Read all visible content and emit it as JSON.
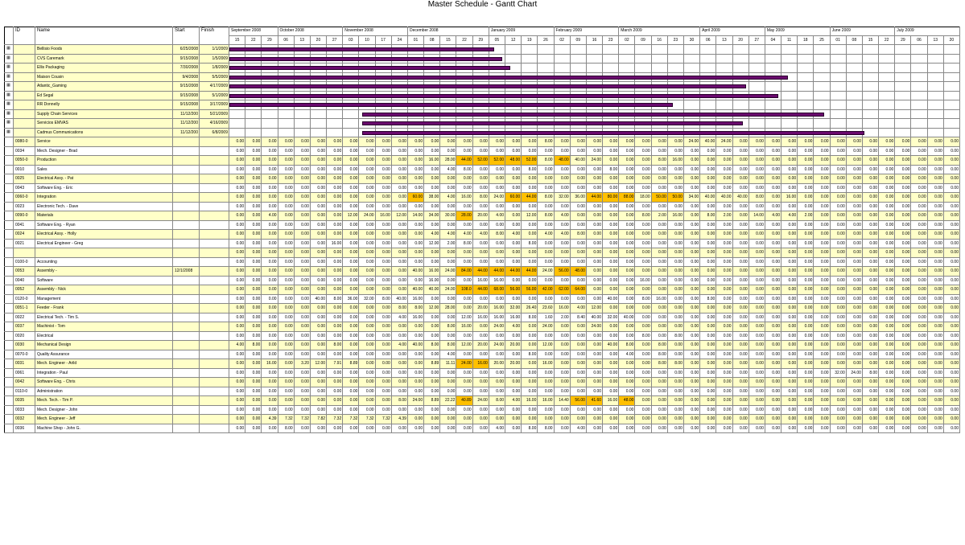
{
  "title": "Master Schedule - Gantt Chart",
  "colors": {
    "yellow": "#ffffc8",
    "orange": "#ffc000",
    "bar": "#6a0a6e",
    "grid": "#888888"
  },
  "header": {
    "id": "ID",
    "name": "Name",
    "start": "Start",
    "finish": "Finish"
  },
  "months": [
    "September 2008",
    "October 2008",
    "November 2008",
    "December 2008",
    "January 2009",
    "February 2009",
    "March 2009",
    "April 2009",
    "May 2009",
    "June 2009",
    "July 2009"
  ],
  "weeks": [
    "15",
    "22",
    "29",
    "06",
    "13",
    "20",
    "27",
    "03",
    "10",
    "17",
    "24",
    "01",
    "08",
    "15",
    "22",
    "29",
    "05",
    "12",
    "19",
    "26",
    "02",
    "09",
    "16",
    "23",
    "02",
    "09",
    "16",
    "23",
    "30",
    "06",
    "13",
    "20",
    "27",
    "04",
    "11",
    "18",
    "25",
    "01",
    "08",
    "15",
    "22",
    "29",
    "06",
    "13",
    "20"
  ],
  "tasks": [
    {
      "name": "Bellisio Foods",
      "start": "6/25/2008",
      "finish": "1/1/2009",
      "bar": [
        0,
        16.3
      ]
    },
    {
      "name": "CVS Caremark",
      "start": "9/15/2008",
      "finish": "1/5/2009",
      "bar": [
        0,
        16.8
      ]
    },
    {
      "name": "Ellis Packaging",
      "start": "7/30/2008",
      "finish": "1/8/2009",
      "bar": [
        0,
        17.3
      ]
    },
    {
      "name": "Maison Cousin",
      "start": "9/4/2008",
      "finish": "5/5/2009",
      "bar": [
        0,
        34.4
      ]
    },
    {
      "name": "Atlantic_Gaming",
      "start": "9/15/2008",
      "finish": "4/17/2009",
      "bar": [
        0,
        31.8
      ]
    },
    {
      "name": "Ed Segal",
      "start": "9/15/2008",
      "finish": "5/1/2009",
      "bar": [
        0,
        33.8
      ]
    },
    {
      "name": "RR Donnelly",
      "start": "9/15/2008",
      "finish": "3/17/2009",
      "bar": [
        0,
        27.3
      ]
    },
    {
      "name": "Supply Chain Services",
      "start": "11/12/200",
      "finish": "5/21/2009",
      "bar": [
        8.2,
        36.6
      ]
    },
    {
      "name": "Servicios EMVAS",
      "start": "11/12/200",
      "finish": "4/16/2009",
      "bar": [
        8.2,
        31.6
      ]
    },
    {
      "name": "Cadmus Communications",
      "start": "11/12/200",
      "finish": "6/8/2009",
      "bar": [
        8.2,
        39.1
      ]
    }
  ],
  "resources": [
    {
      "id": "0080-0",
      "name": "Service",
      "start": "",
      "hl": 1,
      "vals": "0.00|0.00|0.00|0.00|0.00|0.00|0.00|0.00|0.00|0.00|0.00|0.00|0.00|0.00|0.00|0.00|0.00|0.00|0.00|8.00|0.00|0.00|0.00|0.00|0.00|0.00|0.00|0.00|24.00|40.00|24.00|0.00|0.00|0.00|0.00|0.00|0.00|0.00|0.00|0.00|0.00|0.00|0.00|0.00|0.00",
      "o": []
    },
    {
      "id": "0034",
      "name": "Mech. Designer - Brad",
      "start": "",
      "hl": 0,
      "vals": "0.00|0.00|0.00|0.00|0.00|0.00|0.00|0.00|0.00|0.00|0.00|0.00|0.00|0.00|0.00|0.00|0.00|0.00|0.00|0.00|0.00|0.00|0.00|0.00|0.00|0.00|0.00|0.00|0.00|0.00|0.00|0.00|0.00|0.00|0.00|0.00|0.00|0.00|0.00|0.00|0.00|0.00|0.00|0.00|0.00",
      "o": []
    },
    {
      "id": "0050-0",
      "name": "Production",
      "start": "",
      "hl": 1,
      "vals": "0.00|0.00|0.00|0.00|0.00|0.00|0.00|0.00|0.00|0.00|0.00|0.00|16.00|28.00|44.00|52.00|52.00|48.00|52.00|8.00|48.00|40.00|24.00|0.00|0.00|0.00|8.00|16.00|0.00|0.00|0.00|0.00|0.00|0.00|0.00|0.00|0.00|0.00|0.00|0.00|0.00|0.00|0.00|0.00|0.00",
      "o": [
        14,
        15,
        16,
        17,
        18,
        20
      ]
    },
    {
      "id": "0010",
      "name": "Sales",
      "start": "",
      "hl": 0,
      "vals": "0.00|0.00|0.00|0.00|0.00|0.00|0.00|0.00|0.00|0.00|0.00|0.00|0.00|4.00|8.00|0.00|0.00|0.00|8.00|0.00|0.00|0.00|0.00|8.00|0.00|0.00|0.00|0.00|0.00|0.00|0.00|0.00|0.00|0.00|0.00|0.00|0.00|0.00|0.00|0.00|0.00|0.00|0.00|0.00|0.00",
      "o": []
    },
    {
      "id": "0025",
      "name": "Electrical Assy. - Pat",
      "start": "",
      "hl": 1,
      "vals": "0.00|0.00|0.00|0.00|0.00|0.00|0.00|0.00|0.00|0.00|0.00|0.00|0.00|0.00|0.00|0.00|0.00|0.00|0.00|0.00|0.00|0.00|0.00|0.00|0.00|0.00|0.00|0.00|0.00|0.00|0.00|0.00|0.00|0.00|0.00|0.00|0.00|0.00|0.00|0.00|0.00|0.00|0.00|0.00|0.00",
      "o": []
    },
    {
      "id": "0043",
      "name": "Software Eng. - Eric",
      "start": "",
      "hl": 0,
      "vals": "0.00|0.00|0.00|0.00|0.00|0.00|0.00|0.00|0.00|0.00|0.00|0.00|0.00|0.00|0.00|0.00|0.00|0.00|0.00|0.00|0.00|0.00|0.00|0.00|0.00|0.00|0.00|0.00|0.00|0.00|0.00|0.00|0.00|0.00|0.00|0.00|0.00|0.00|0.00|0.00|0.00|0.00|0.00|0.00|0.00",
      "o": []
    },
    {
      "id": "0060-0",
      "name": "Integration",
      "start": "",
      "hl": 1,
      "vals": "0.00|0.00|0.00|0.00|0.00|0.00|0.00|0.00|0.00|0.00|0.00|60.00|38.00|4.00|16.00|8.00|24.00|60.00|44.00|8.00|32.00|36.00|44.00|80.00|88.00|18.00|50.00|50.00|34.00|40.00|40.00|40.00|8.00|0.00|16.00|0.00|0.00|0.00|0.00|0.00|0.00|0.00|0.00|0.00|0.00",
      "o": [
        11,
        17,
        18,
        22,
        23,
        24,
        26,
        27
      ]
    },
    {
      "id": "0023",
      "name": "Electronic Tech. - Dave",
      "start": "",
      "hl": 0,
      "vals": "0.00|0.00|0.00|0.00|0.00|0.00|0.00|0.00|0.00|0.00|0.00|0.00|0.00|0.00|0.00|0.00|0.00|0.00|0.00|0.00|0.00|0.00|0.00|0.00|0.00|0.00|0.00|0.00|0.00|0.00|0.00|0.00|0.00|0.00|0.00|0.00|0.00|0.00|0.00|0.00|0.00|0.00|0.00|0.00|0.00",
      "o": []
    },
    {
      "id": "0090-0",
      "name": "Materials",
      "start": "",
      "hl": 1,
      "vals": "0.00|0.00|4.00|0.00|0.00|0.00|0.00|12.00|24.00|16.00|12.00|14.00|34.00|30.00|28.00|20.00|4.00|0.00|12.00|8.00|4.00|0.00|0.00|0.00|0.00|8.00|2.00|16.00|0.00|8.00|2.00|0.00|14.00|4.00|4.00|2.00|0.00|0.00|0.00|0.00|0.00|0.00|0.00|0.00|0.00",
      "o": [
        14
      ]
    },
    {
      "id": "0041",
      "name": "Software Eng. - Ryan",
      "start": "",
      "hl": 0,
      "vals": "0.00|0.00|0.00|0.00|0.00|0.00|0.00|0.00|0.00|0.00|0.00|0.00|0.00|0.00|0.00|0.00|0.00|0.00|0.00|0.00|0.00|0.00|0.00|0.00|0.00|0.00|0.00|0.00|0.00|0.00|0.00|0.00|0.00|0.00|0.00|0.00|0.00|0.00|0.00|0.00|0.00|0.00|0.00|0.00|0.00",
      "o": []
    },
    {
      "id": "0024",
      "name": "Electrical Assy. - Holly",
      "start": "",
      "hl": 1,
      "vals": "0.00|0.00|0.00|0.00|0.00|0.00|0.00|0.00|0.00|0.00|0.00|0.00|4.00|4.00|4.00|4.00|8.00|4.00|0.00|4.00|4.00|8.00|0.00|0.00|0.00|0.00|0.00|0.00|0.00|0.00|0.00|0.00|0.00|0.00|0.00|0.00|0.00|0.00|0.00|0.00|0.00|0.00|0.00|0.00|0.00",
      "o": []
    },
    {
      "id": "0021",
      "name": "Electrical Engineer - Greg",
      "start": "",
      "hl": 0,
      "vals": "0.00|0.00|0.00|0.00|0.00|0.00|16.00|0.00|0.00|0.00|0.00|0.00|12.00|2.00|8.00|0.00|0.00|0.00|8.00|0.00|0.00|0.00|0.00|0.00|0.00|0.00|0.00|0.00|0.00|0.00|0.00|0.00|0.00|0.00|0.00|0.00|0.00|0.00|0.00|0.00|0.00|0.00|0.00|0.00|0.00",
      "o": []
    },
    {
      "id": "",
      "name": "",
      "start": "",
      "hl": 1,
      "vals": "0.00|0.00|0.00|0.00|0.00|0.00|0.00|0.00|0.00|0.00|0.00|0.00|0.00|0.00|0.00|0.00|0.00|0.00|0.00|0.00|0.00|0.00|0.00|0.00|0.00|0.00|0.00|0.00|0.00|0.00|0.00|0.00|0.00|0.00|0.00|0.00|0.00|0.00|0.00|0.00|0.00|0.00|0.00|0.00|0.00",
      "o": []
    },
    {
      "id": "0100-0",
      "name": "Accounting",
      "start": "",
      "hl": 0,
      "vals": "0.00|0.00|0.00|0.00|0.00|0.00|0.00|0.00|0.00|0.00|0.00|0.00|0.00|0.00|0.00|0.00|0.00|0.00|0.00|0.00|0.00|0.00|0.00|0.00|0.00|0.00|0.00|0.00|0.00|0.00|0.00|0.00|0.00|0.00|0.00|0.00|0.00|0.00|0.00|0.00|0.00|0.00|0.00|0.00|0.00",
      "o": []
    },
    {
      "id": "0053",
      "name": "Assembly -",
      "start": "12/1/2008",
      "hl": 1,
      "vals": "0.00|0.00|0.00|0.00|0.00|0.00|0.00|0.00|0.00|0.00|0.00|40.00|16.00|24.00|84.00|44.00|44.00|44.00|44.00|24.00|56.00|48.00|0.00|0.00|0.00|0.00|0.00|0.00|0.00|0.00|0.00|0.00|0.00|0.00|0.00|0.00|0.00|0.00|0.00|0.00|0.00|0.00|0.00|0.00|0.00",
      "o": [
        14,
        15,
        16,
        17,
        18,
        20,
        21
      ]
    },
    {
      "id": "0040",
      "name": "Software",
      "start": "",
      "hl": 0,
      "vals": "0.00|0.00|0.00|0.00|0.00|0.00|0.00|0.00|0.00|0.00|0.00|0.00|16.00|0.00|0.00|16.00|16.00|0.00|0.00|0.00|0.00|0.00|0.00|0.00|0.00|16.00|0.00|0.00|0.00|0.00|0.00|0.00|0.00|0.00|0.00|0.00|0.00|0.00|0.00|0.00|0.00|0.00|0.00|0.00|0.00",
      "o": []
    },
    {
      "id": "0052",
      "name": "Assembly - Nick",
      "start": "",
      "hl": 1,
      "vals": "0.00|0.00|0.00|0.00|0.00|0.00|0.00|0.00|0.00|0.00|0.00|40.00|40.00|24.00|108.0|44.00|68.00|56.00|56.00|42.00|62.00|64.00|0.00|0.00|0.00|0.00|0.00|0.00|0.00|0.00|0.00|0.00|0.00|0.00|0.00|0.00|0.00|0.00|0.00|0.00|0.00|0.00|0.00|0.00|0.00",
      "o": [
        14,
        15,
        16,
        17,
        18,
        19,
        20,
        21
      ]
    },
    {
      "id": "0120-0",
      "name": "Management",
      "start": "",
      "hl": 0,
      "vals": "0.00|0.00|0.00|0.00|0.00|40.00|8.00|36.00|32.00|8.00|40.00|16.00|0.00|0.00|0.00|0.00|0.00|0.00|0.00|0.00|0.00|0.00|0.00|40.00|0.00|8.00|16.00|0.00|0.00|8.00|0.00|0.00|0.00|0.00|0.00|0.00|0.00|0.00|0.00|0.00|0.00|0.00|0.00|0.00|0.00",
      "o": []
    },
    {
      "id": "0051-1",
      "name": "Feeder - Frank",
      "start": "",
      "hl": 1,
      "vals": "0.00|0.00|0.00|0.00|0.00|0.00|0.00|0.00|0.00|0.00|8.00|8.00|12.00|28.00|0.00|20.00|16.00|32.00|26.40|23.60|16.00|4.00|12.00|0.00|0.00|0.00|0.00|0.00|0.00|0.00|0.00|0.00|0.00|0.00|0.00|0.00|0.00|0.00|0.00|0.00|0.00|0.00|0.00|0.00|0.00",
      "o": []
    },
    {
      "id": "0022",
      "name": "Electrical Tech. - Tim S.",
      "start": "",
      "hl": 0,
      "vals": "0.00|0.00|0.00|0.00|0.00|0.00|0.00|0.00|0.00|0.00|4.00|16.00|0.00|0.00|12.00|16.00|16.00|16.00|8.00|1.60|2.00|8.40|40.00|32.00|40.00|0.00|0.00|0.00|0.00|0.00|0.00|0.00|0.00|0.00|0.00|0.00|0.00|0.00|0.00|0.00|0.00|0.00|0.00|0.00|0.00",
      "o": []
    },
    {
      "id": "0037",
      "name": "Machinist - Tom",
      "start": "",
      "hl": 1,
      "vals": "0.00|0.00|0.00|0.00|0.00|0.00|0.00|0.00|0.00|0.00|0.00|0.00|0.00|8.00|16.00|0.00|24.00|4.00|0.00|24.00|0.00|0.00|24.00|0.00|0.00|0.00|0.00|0.00|0.00|0.00|0.00|0.00|0.00|0.00|0.00|0.00|0.00|0.00|0.00|0.00|0.00|0.00|0.00|0.00|0.00",
      "o": []
    },
    {
      "id": "0020",
      "name": "Electrical",
      "start": "",
      "hl": 0,
      "vals": "0.00|0.00|0.00|0.00|0.00|0.00|0.00|0.00|0.00|0.00|0.00|0.00|0.00|0.00|0.00|0.00|0.00|0.00|0.00|0.00|0.00|0.00|0.00|0.00|0.00|8.00|0.00|8.00|0.00|0.00|0.00|0.00|0.00|0.00|0.00|0.00|0.00|0.00|0.00|0.00|0.00|0.00|0.00|0.00|0.00",
      "o": []
    },
    {
      "id": "0030",
      "name": "Mechanical Design",
      "start": "",
      "hl": 1,
      "vals": "4.00|8.00|0.00|0.00|0.00|0.00|8.00|0.00|0.00|0.00|4.00|40.00|8.00|8.00|12.00|20.00|24.00|20.00|0.00|12.00|0.00|0.00|0.00|40.00|8.00|0.00|8.00|0.00|0.00|0.00|0.00|0.00|0.00|0.00|0.00|0.00|0.00|0.00|0.00|0.00|0.00|0.00|0.00|0.00|0.00",
      "o": []
    },
    {
      "id": "0070-0",
      "name": "Quality Assurance",
      "start": "",
      "hl": 0,
      "vals": "0.00|0.00|0.00|0.00|0.00|0.00|0.00|0.00|0.00|0.00|0.00|0.00|0.00|4.00|0.00|0.00|0.00|0.00|8.00|0.00|0.00|0.00|0.00|0.00|4.00|0.00|8.00|0.00|0.00|0.00|0.00|0.00|0.00|0.00|0.00|0.00|0.00|0.00|0.00|0.00|0.00|0.00|0.00|0.00|0.00",
      "o": []
    },
    {
      "id": "0031",
      "name": "Mech. Engineer - Arild",
      "start": "",
      "hl": 1,
      "vals": "0.00|0.00|16.00|0.00|3.20|12.00|7.91|8.89|0.00|0.00|0.00|0.00|8.89|11.11|24.00|16.00|20.00|20.00|0.00|16.00|0.00|0.00|0.00|0.00|0.00|0.00|8.00|8.00|0.00|0.00|0.00|0.00|0.00|0.00|0.00|0.00|0.00|0.00|0.00|0.00|0.00|0.00|0.00|0.00|0.00",
      "o": [
        14,
        15
      ]
    },
    {
      "id": "0061",
      "name": "Integration - Paul",
      "start": "",
      "hl": 0,
      "vals": "0.00|0.00|0.00|0.00|0.00|0.00|0.00|0.00|0.00|0.00|0.00|0.00|0.00|0.00|0.00|0.00|0.00|0.00|0.00|0.00|0.00|0.00|0.00|0.00|0.00|0.00|0.00|0.00|0.00|0.00|0.00|0.00|0.00|0.00|0.00|0.00|0.00|32.00|24.00|8.00|0.00|0.00|0.00|0.00|0.00",
      "o": []
    },
    {
      "id": "0042",
      "name": "Software Eng. - Chris",
      "start": "",
      "hl": 1,
      "vals": "0.00|0.00|0.00|0.00|0.00|0.00|0.00|0.00|0.00|0.00|0.00|0.00|0.00|0.00|0.00|0.00|0.00|0.00|0.00|0.00|0.00|0.00|0.00|0.00|0.00|0.00|0.00|0.00|0.00|0.00|0.00|0.00|0.00|0.00|0.00|0.00|0.00|0.00|0.00|0.00|0.00|0.00|0.00|0.00|0.00",
      "o": []
    },
    {
      "id": "0110-0",
      "name": "Administration",
      "start": "",
      "hl": 0,
      "vals": "0.00|0.00|0.00|0.00|0.00|0.00|0.00|0.00|0.00|0.00|0.00|0.00|0.00|0.00|0.00|0.00|0.00|0.00|0.00|0.00|0.00|0.00|0.00|0.00|0.00|0.00|0.00|0.00|0.00|0.00|0.00|0.00|0.00|0.00|0.00|0.00|0.00|0.00|0.00|0.00|0.00|0.00|0.00|0.00|0.00",
      "o": []
    },
    {
      "id": "0035",
      "name": "Mech. Tech. - Tim P.",
      "start": "",
      "hl": 1,
      "vals": "0.00|0.00|0.00|0.00|0.00|0.00|0.00|0.00|0.00|0.00|8.00|24.00|8.89|22.22|40.89|24.00|8.00|4.00|16.00|16.00|14.40|56.00|41.60|16.00|48.00|0.00|0.00|0.00|0.00|0.00|0.00|0.00|0.00|0.00|0.00|0.00|0.00|0.00|0.00|0.00|0.00|0.00|0.00|0.00|0.00",
      "o": [
        14,
        21,
        22,
        24
      ]
    },
    {
      "id": "0033",
      "name": "Mech. Designer - John",
      "start": "",
      "hl": 0,
      "vals": "0.00|0.00|0.00|0.00|0.00|0.00|0.00|0.00|0.00|0.00|0.00|0.00|0.00|0.00|0.00|0.00|0.00|0.00|0.00|0.00|0.00|0.00|0.00|0.00|0.00|0.00|0.00|0.00|0.00|0.00|0.00|0.00|0.00|0.00|0.00|0.00|0.00|0.00|0.00|0.00|0.00|0.00|0.00|0.00|0.00",
      "o": []
    },
    {
      "id": "0032",
      "name": "Mech. Engineer - Jeff",
      "start": "",
      "hl": 1,
      "vals": "0.00|0.00|4.39|7.32|7.32|7.82|7.32|7.32|7.32|7.32|4.39|0.00|0.00|0.00|0.00|0.00|0.00|0.00|0.00|0.00|0.00|0.00|0.00|0.00|0.00|0.00|0.00|0.00|0.00|0.00|0.00|0.00|0.00|0.00|0.00|0.00|0.00|0.00|0.00|0.00|0.00|0.00|0.00|0.00|0.00",
      "o": []
    },
    {
      "id": "0036",
      "name": "Machine Shop - John G.",
      "start": "",
      "hl": 0,
      "vals": "0.00|0.00|0.00|8.00|0.00|0.00|0.00|0.00|0.00|0.00|0.00|0.00|0.00|0.00|0.00|0.00|4.00|0.00|8.00|8.00|0.00|4.00|0.00|0.00|0.00|0.00|0.00|0.00|0.00|0.00|0.00|0.00|0.00|0.00|0.00|0.00|0.00|0.00|0.00|0.00|0.00|0.00|0.00|0.00|0.00",
      "o": []
    }
  ]
}
